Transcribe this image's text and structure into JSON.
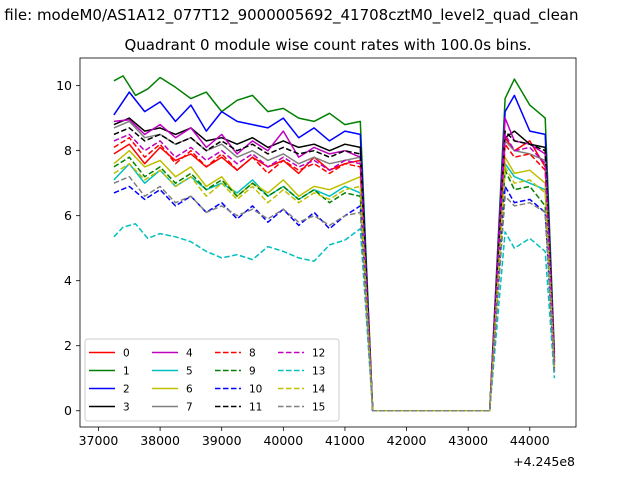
{
  "figure": {
    "suptitle": "n file: modeM0/AS1A12_077T12_9000005692_41708cztM0_level2_quad_clean",
    "title": "Quadrant 0 module wise count rates with 100.0s bins."
  },
  "chart_data": {
    "type": "line",
    "title": "Quadrant 0 module wise count rates with 100.0s bins.",
    "xlabel": "",
    "ylabel": "",
    "x_offset_label": "+4.245e8",
    "x_offset": 424500000,
    "xlim": [
      36700,
      44750
    ],
    "ylim": [
      -0.5,
      10.85
    ],
    "xticks": [
      37000,
      38000,
      39000,
      40000,
      41000,
      42000,
      43000,
      44000
    ],
    "xtick_labels": [
      "37000",
      "38000",
      "39000",
      "40000",
      "41000",
      "42000",
      "43000",
      "44000"
    ],
    "yticks": [
      0,
      2,
      4,
      6,
      8,
      10
    ],
    "ytick_labels": [
      "0",
      "2",
      "4",
      "6",
      "8",
      "10"
    ],
    "grid": false,
    "legend_position": "lower-left",
    "legend_columns": 4,
    "series": [
      {
        "name": "0",
        "color": "#ff0000",
        "dash": "solid",
        "x": [
          37250,
          37500,
          37750,
          38000,
          38250,
          38500,
          38750,
          39000,
          39250,
          39500,
          39750,
          40000,
          40250,
          40500,
          40750,
          41000,
          41250,
          41450,
          43350,
          43600,
          43750,
          44000,
          44250,
          44400
        ],
        "y": [
          7.9,
          8.2,
          7.6,
          8.1,
          7.7,
          7.9,
          7.5,
          7.8,
          7.4,
          7.8,
          7.5,
          7.7,
          7.3,
          7.8,
          7.4,
          7.6,
          7.7,
          0,
          0,
          8.4,
          8.0,
          8.3,
          7.5,
          1.4
        ]
      },
      {
        "name": "1",
        "color": "#008000",
        "dash": "solid",
        "x": [
          37250,
          37400,
          37600,
          37800,
          38000,
          38250,
          38500,
          38750,
          39000,
          39250,
          39500,
          39750,
          40000,
          40250,
          40500,
          40750,
          41000,
          41250,
          41450,
          43350,
          43600,
          43750,
          44000,
          44250,
          44400
        ],
        "y": [
          10.15,
          10.3,
          9.7,
          9.9,
          10.25,
          9.95,
          9.6,
          9.8,
          9.2,
          9.55,
          9.7,
          9.2,
          9.3,
          9.0,
          8.9,
          9.15,
          8.8,
          8.9,
          0,
          0,
          9.6,
          10.2,
          9.4,
          9.0,
          1.8
        ]
      },
      {
        "name": "2",
        "color": "#0000ff",
        "dash": "solid",
        "x": [
          37250,
          37500,
          37750,
          38000,
          38250,
          38500,
          38750,
          39000,
          39250,
          39500,
          39750,
          40000,
          40250,
          40500,
          40750,
          41000,
          41250,
          41450,
          43350,
          43600,
          43750,
          44000,
          44250,
          44400
        ],
        "y": [
          9.1,
          9.8,
          9.2,
          9.5,
          8.9,
          9.4,
          8.6,
          9.2,
          8.9,
          8.8,
          8.7,
          9.0,
          8.4,
          8.7,
          8.3,
          8.6,
          8.5,
          0,
          0,
          9.2,
          9.7,
          8.6,
          8.5,
          1.6
        ]
      },
      {
        "name": "3",
        "color": "#000000",
        "dash": "solid",
        "x": [
          37250,
          37500,
          37750,
          38000,
          38250,
          38500,
          38750,
          39000,
          39250,
          39500,
          39750,
          40000,
          40250,
          40500,
          40750,
          41000,
          41250,
          41450,
          43350,
          43600,
          43750,
          44000,
          44250,
          44400
        ],
        "y": [
          8.8,
          9.0,
          8.6,
          8.7,
          8.5,
          8.7,
          8.3,
          8.4,
          8.2,
          8.4,
          8.1,
          8.3,
          8.1,
          8.2,
          8.0,
          8.2,
          8.1,
          0,
          0,
          8.4,
          8.6,
          8.2,
          8.1,
          1.5
        ]
      },
      {
        "name": "4",
        "color": "#bf00bf",
        "dash": "solid",
        "x": [
          37250,
          37500,
          37750,
          38000,
          38250,
          38500,
          38750,
          39000,
          39250,
          39500,
          39750,
          40000,
          40250,
          40500,
          40750,
          41000,
          41250,
          41450,
          43350,
          43600,
          43750,
          44000,
          44250,
          44400
        ],
        "y": [
          8.9,
          8.95,
          8.5,
          8.8,
          8.4,
          8.7,
          8.1,
          8.5,
          7.9,
          8.3,
          8.0,
          8.6,
          7.8,
          8.1,
          7.9,
          8.0,
          7.8,
          0,
          0,
          9.0,
          8.3,
          8.2,
          7.9,
          1.7
        ]
      },
      {
        "name": "5",
        "color": "#00bfbf",
        "dash": "solid",
        "x": [
          37250,
          37500,
          37750,
          38000,
          38250,
          38500,
          38750,
          39000,
          39250,
          39500,
          39750,
          40000,
          40250,
          40500,
          40750,
          41000,
          41250,
          41450,
          43350,
          43600,
          43750,
          44000,
          44250,
          44400
        ],
        "y": [
          7.1,
          7.6,
          7.0,
          7.4,
          6.9,
          7.2,
          6.8,
          7.0,
          6.7,
          7.1,
          6.6,
          6.9,
          6.5,
          6.8,
          6.6,
          6.9,
          6.7,
          0,
          0,
          7.6,
          7.2,
          7.0,
          6.8,
          1.2
        ]
      },
      {
        "name": "6",
        "color": "#bfbf00",
        "dash": "solid",
        "x": [
          37250,
          37500,
          37750,
          38000,
          38250,
          38500,
          38750,
          39000,
          39250,
          39500,
          39750,
          40000,
          40250,
          40500,
          40750,
          41000,
          41250,
          41450,
          43350,
          43600,
          43750,
          44000,
          44250,
          44400
        ],
        "y": [
          7.6,
          8.0,
          7.5,
          7.7,
          7.2,
          7.5,
          6.9,
          7.2,
          6.6,
          7.0,
          6.7,
          7.1,
          6.6,
          6.9,
          6.8,
          7.0,
          7.2,
          0,
          0,
          7.8,
          7.3,
          7.4,
          7.0,
          1.3
        ]
      },
      {
        "name": "7",
        "color": "#808080",
        "dash": "solid",
        "x": [
          37250,
          37500,
          37750,
          38000,
          38250,
          38500,
          38750,
          39000,
          39250,
          39500,
          39750,
          40000,
          40250,
          40500,
          40750,
          41000,
          41250,
          41450,
          43350,
          43600,
          43750,
          44000,
          44250,
          44400
        ],
        "y": [
          8.7,
          8.9,
          8.4,
          8.5,
          8.2,
          8.4,
          8.0,
          8.2,
          7.8,
          8.0,
          7.7,
          7.9,
          7.6,
          7.8,
          7.6,
          7.7,
          7.8,
          0,
          0,
          8.3,
          8.0,
          7.9,
          7.7,
          1.4
        ]
      },
      {
        "name": "8",
        "color": "#ff0000",
        "dash": "dashed",
        "x": [
          37250,
          37500,
          37750,
          38000,
          38250,
          38500,
          38750,
          39000,
          39250,
          39500,
          39750,
          40000,
          40250,
          40500,
          40750,
          41000,
          41250,
          41450,
          43350,
          43600,
          43750,
          44000,
          44250,
          44400
        ],
        "y": [
          8.1,
          8.4,
          7.8,
          8.2,
          7.6,
          8.0,
          7.5,
          7.9,
          7.4,
          7.8,
          7.3,
          7.7,
          7.4,
          7.6,
          7.3,
          7.6,
          7.5,
          0,
          0,
          8.2,
          7.8,
          7.9,
          7.4,
          1.5
        ]
      },
      {
        "name": "9",
        "color": "#008000",
        "dash": "dashed",
        "x": [
          37250,
          37500,
          37750,
          38000,
          38250,
          38500,
          38750,
          39000,
          39250,
          39500,
          39750,
          40000,
          40250,
          40500,
          40750,
          41000,
          41250,
          41450,
          43350,
          43600,
          43750,
          44000,
          44250,
          44400
        ],
        "y": [
          7.5,
          7.8,
          7.2,
          7.5,
          7.0,
          7.3,
          6.8,
          7.1,
          6.6,
          7.0,
          6.6,
          6.9,
          6.5,
          6.8,
          6.4,
          6.7,
          6.6,
          0,
          0,
          7.4,
          6.8,
          6.9,
          6.3,
          1.3
        ]
      },
      {
        "name": "10",
        "color": "#0000ff",
        "dash": "dashed",
        "x": [
          37250,
          37500,
          37750,
          38000,
          38250,
          38500,
          38750,
          39000,
          39250,
          39500,
          39750,
          40000,
          40250,
          40500,
          40750,
          41000,
          41250,
          41450,
          43350,
          43600,
          43750,
          44000,
          44250,
          44400
        ],
        "y": [
          6.7,
          6.9,
          6.5,
          6.8,
          6.3,
          6.6,
          6.1,
          6.4,
          5.9,
          6.3,
          5.8,
          6.2,
          5.7,
          6.1,
          5.6,
          6.0,
          6.3,
          0,
          0,
          6.9,
          6.4,
          6.5,
          6.1,
          1.2
        ]
      },
      {
        "name": "11",
        "color": "#000000",
        "dash": "dashed",
        "x": [
          37250,
          37500,
          37750,
          38000,
          38250,
          38500,
          38750,
          39000,
          39250,
          39500,
          39750,
          40000,
          40250,
          40500,
          40750,
          41000,
          41250,
          41450,
          43350,
          43600,
          43750,
          44000,
          44250,
          44400
        ],
        "y": [
          8.5,
          8.7,
          8.3,
          8.5,
          8.2,
          8.4,
          8.0,
          8.3,
          8.0,
          8.2,
          7.9,
          8.1,
          7.9,
          8.0,
          7.8,
          8.0,
          7.9,
          0,
          0,
          8.6,
          8.3,
          8.2,
          8.0,
          1.6
        ]
      },
      {
        "name": "12",
        "color": "#bf00bf",
        "dash": "dashed",
        "x": [
          37250,
          37500,
          37750,
          38000,
          38250,
          38500,
          38750,
          39000,
          39250,
          39500,
          39750,
          40000,
          40250,
          40500,
          40750,
          41000,
          41250,
          41450,
          43350,
          43600,
          43750,
          44000,
          44250,
          44400
        ],
        "y": [
          8.3,
          8.5,
          8.0,
          8.3,
          7.8,
          8.1,
          7.7,
          8.0,
          7.6,
          7.9,
          7.5,
          7.8,
          7.5,
          7.7,
          7.4,
          7.7,
          7.6,
          0,
          0,
          8.5,
          8.0,
          8.1,
          7.6,
          1.5
        ]
      },
      {
        "name": "13",
        "color": "#00bfbf",
        "dash": "dashed",
        "x": [
          37250,
          37400,
          37600,
          37800,
          38000,
          38250,
          38500,
          38750,
          39000,
          39250,
          39500,
          39750,
          40000,
          40250,
          40500,
          40750,
          41000,
          41250,
          41450,
          43350,
          43600,
          43750,
          44000,
          44250,
          44400
        ],
        "y": [
          5.35,
          5.65,
          5.75,
          5.3,
          5.45,
          5.35,
          5.2,
          4.9,
          4.7,
          4.8,
          4.65,
          5.05,
          4.9,
          4.7,
          4.6,
          5.1,
          5.25,
          5.6,
          0,
          0,
          5.5,
          5.0,
          5.3,
          4.9,
          1.0
        ]
      },
      {
        "name": "14",
        "color": "#bfbf00",
        "dash": "dashed",
        "x": [
          37250,
          37500,
          37750,
          38000,
          38250,
          38500,
          38750,
          39000,
          39250,
          39500,
          39750,
          40000,
          40250,
          40500,
          40750,
          41000,
          41250,
          41450,
          43350,
          43600,
          43750,
          44000,
          44250,
          44400
        ],
        "y": [
          7.3,
          7.6,
          7.1,
          7.4,
          6.9,
          7.2,
          6.6,
          7.0,
          6.5,
          6.9,
          6.4,
          6.8,
          6.4,
          6.7,
          6.5,
          6.8,
          6.9,
          0,
          0,
          7.5,
          7.0,
          7.1,
          6.7,
          1.3
        ]
      },
      {
        "name": "15",
        "color": "#808080",
        "dash": "dashed",
        "x": [
          37250,
          37500,
          37750,
          38000,
          38250,
          38500,
          38750,
          39000,
          39250,
          39500,
          39750,
          40000,
          40250,
          40500,
          40750,
          41000,
          41250,
          41450,
          43350,
          43600,
          43750,
          44000,
          44250,
          44400
        ],
        "y": [
          7.0,
          7.2,
          6.6,
          6.9,
          6.4,
          6.6,
          6.1,
          6.3,
          6.0,
          6.2,
          5.9,
          6.2,
          5.8,
          6.0,
          5.7,
          6.0,
          6.1,
          0,
          0,
          6.6,
          6.3,
          6.4,
          6.1,
          1.2
        ]
      }
    ]
  }
}
